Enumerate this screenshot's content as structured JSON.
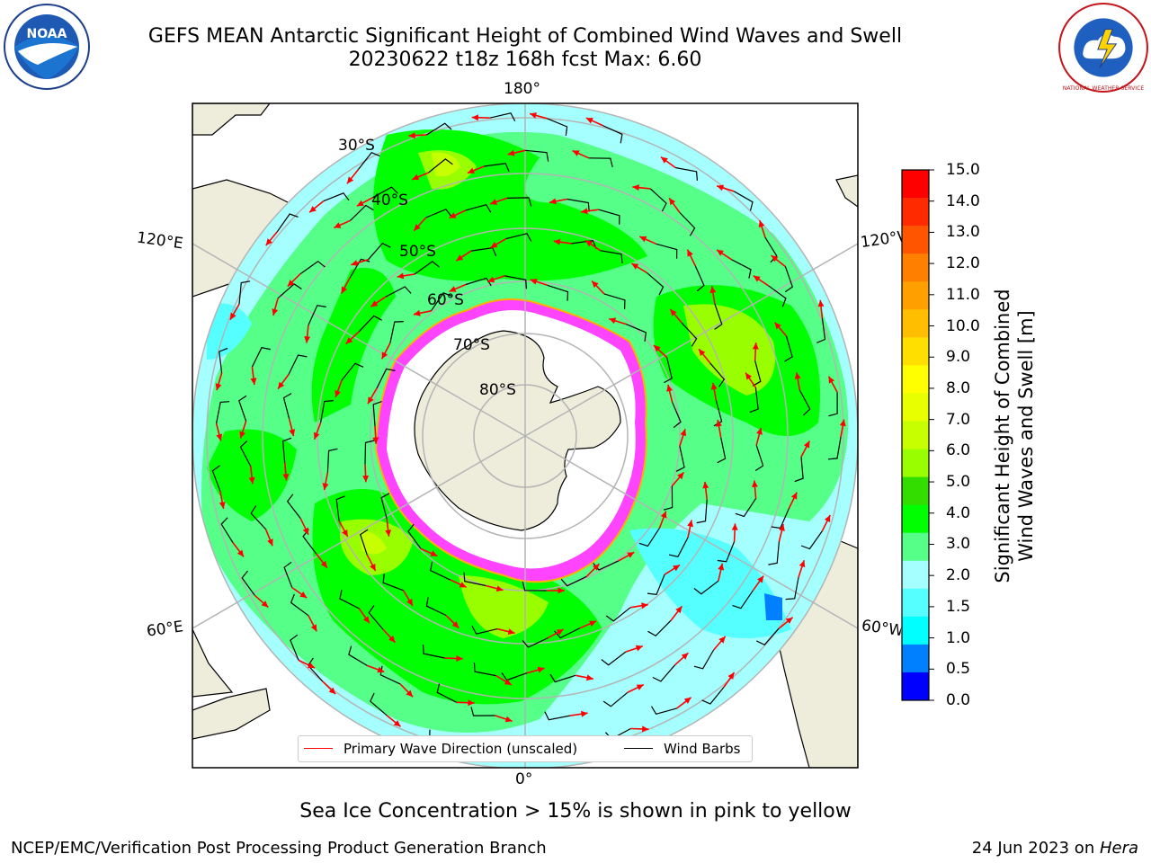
{
  "title": {
    "line1": "GEFS MEAN Antarctic Significant Height of Combined Wind Waves and Swell",
    "line2": "20230622 t18z 168h fcst   Max: 6.60"
  },
  "map": {
    "projection": "south-polar-stereographic",
    "longitude_labels": {
      "top": "180°",
      "bottom": "0°",
      "upper_left": "120°E",
      "lower_left": "60°E",
      "upper_right": "120°W",
      "lower_right": "60°W"
    },
    "latitude_labels": [
      "30°S",
      "40°S",
      "50°S",
      "60°S",
      "70°S",
      "80°S"
    ],
    "legend": {
      "wave_label": "Primary Wave Direction (unscaled)",
      "wave_color": "#ff0000",
      "barb_label": "Wind Barbs",
      "barb_color": "#000000"
    }
  },
  "colorbar": {
    "label_line1": "Significant Height of Combined",
    "label_line2": "Wind Waves and Swell [m]",
    "ticks": [
      "15.0",
      "14.0",
      "13.0",
      "12.0",
      "11.0",
      "10.0",
      "9.0",
      "8.0",
      "7.0",
      "6.0",
      "5.0",
      "4.0",
      "3.0",
      "2.0",
      "1.5",
      "1.0",
      "0.5",
      "0.0"
    ],
    "bands": [
      "#ff0000",
      "#ff2a00",
      "#ff5500",
      "#ff8000",
      "#ff9f00",
      "#ffbf00",
      "#ffdf00",
      "#ffff00",
      "#e8ff00",
      "#c8ff00",
      "#99ff00",
      "#33dd00",
      "#00ff00",
      "#55ff88",
      "#a6ffff",
      "#55ffff",
      "#00ffff",
      "#0080ff",
      "#0000ff"
    ]
  },
  "colors": {
    "land": "#eeecdb",
    "ice_interior": "#ffffff",
    "sea_ice_edge": "#ff44ff",
    "gridline": "#b4b4b4"
  },
  "footer": {
    "note": "Sea Ice Concentration > 15% is shown in pink to yellow",
    "left": "NCEP/EMC/Verification Post Processing Product Generation Branch",
    "right_prefix": "24 Jun 2023 on ",
    "right_host": "Hera"
  },
  "logos": {
    "left": "NOAA",
    "right": "NATIONAL WEATHER SERVICE"
  }
}
